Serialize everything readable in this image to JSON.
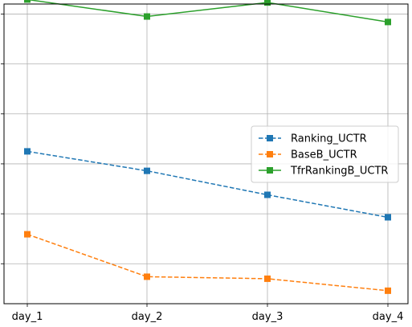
{
  "chart_data": {
    "type": "line",
    "categories": [
      "day_1",
      "day_2",
      "day_3",
      "day_4"
    ],
    "ylim": [
      0,
      6
    ],
    "y_ticks": [
      0.8,
      1.8,
      2.8,
      3.8,
      4.8,
      5.8
    ],
    "y_tick_labels_shown": false,
    "grid": true,
    "legend_position": "center-right",
    "series": [
      {
        "name": "Ranking_UCTR",
        "values": [
          3.05,
          2.66,
          2.18,
          1.73
        ],
        "color": "#1f77b4",
        "linestyle": "dashed",
        "marker": "square"
      },
      {
        "name": "BaseB_UCTR",
        "values": [
          1.39,
          0.54,
          0.5,
          0.26
        ],
        "color": "#ff7f0e",
        "linestyle": "dashed",
        "marker": "square"
      },
      {
        "name": "TfrRankingB_UCTR",
        "values": [
          6.09,
          5.75,
          6.03,
          5.64
        ],
        "color": "#2ca02c",
        "linestyle": "solid",
        "marker": "square"
      }
    ]
  }
}
